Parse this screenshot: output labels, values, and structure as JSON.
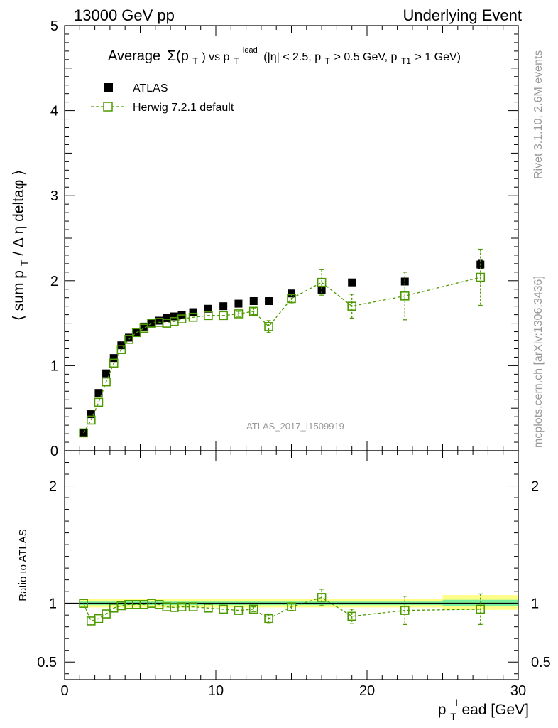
{
  "header": {
    "left": "13000 GeV pp",
    "right": "Underlying Event"
  },
  "side_labels": {
    "rivet": "Rivet 3.1.10,  2.6M events",
    "mcplots": "mcplots.cern.ch [arXiv:1306.3436]"
  },
  "analysis_label": "ATLAS_2017_I1509919",
  "chart_data": [
    {
      "type": "scatter",
      "title_parts": {
        "main": "Average",
        "sigma": "Σ(p",
        "sigma_sub": "T",
        "vs": ") vs p",
        "lead_sub": "T",
        "lead_sup": "lead",
        "cuts_a": "(|η| < 2.5, p",
        "cuts_sub1": "T",
        "cuts_b": " > 0.5 GeV, p",
        "cuts_sub2": "T1",
        "cuts_c": " > 1 GeV)"
      },
      "ylabel": {
        "a": "⟨ sum p",
        "sub": "T",
        "b": " / Δ η deltaφ ⟩"
      },
      "xlim": [
        0,
        30
      ],
      "ylim": [
        0,
        5
      ],
      "yticks": [
        0,
        1,
        2,
        3,
        4,
        5
      ],
      "legend": {
        "placement": "top-left"
      },
      "series": [
        {
          "name": "ATLAS",
          "color": "#000000",
          "marker": "filled-square",
          "x": [
            1.25,
            1.75,
            2.25,
            2.75,
            3.25,
            3.75,
            4.25,
            4.75,
            5.25,
            5.75,
            6.25,
            6.75,
            7.25,
            7.75,
            8.5,
            9.5,
            10.5,
            11.5,
            12.5,
            13.5,
            15.0,
            17.0,
            19.0,
            22.5,
            27.5
          ],
          "y": [
            0.21,
            0.43,
            0.68,
            0.91,
            1.09,
            1.24,
            1.33,
            1.4,
            1.46,
            1.5,
            1.53,
            1.56,
            1.58,
            1.6,
            1.63,
            1.67,
            1.7,
            1.73,
            1.76,
            1.76,
            1.85,
            1.89,
            1.98,
            1.99,
            2.19
          ],
          "err": [
            0.01,
            0.01,
            0.01,
            0.01,
            0.01,
            0.01,
            0.01,
            0.01,
            0.01,
            0.01,
            0.01,
            0.01,
            0.01,
            0.01,
            0.01,
            0.01,
            0.01,
            0.01,
            0.01,
            0.02,
            0.02,
            0.03,
            0.03,
            0.04,
            0.05
          ]
        },
        {
          "name": "Herwig 7.2.1 default",
          "color": "#4c9a00",
          "marker": "open-square",
          "x": [
            1.25,
            1.75,
            2.25,
            2.75,
            3.25,
            3.75,
            4.25,
            4.75,
            5.25,
            5.75,
            6.25,
            6.75,
            7.25,
            7.75,
            8.5,
            9.5,
            10.5,
            11.5,
            12.5,
            13.5,
            15.0,
            17.0,
            19.0,
            22.5,
            27.5
          ],
          "y": [
            0.21,
            0.36,
            0.57,
            0.81,
            1.03,
            1.19,
            1.31,
            1.39,
            1.44,
            1.5,
            1.51,
            1.5,
            1.52,
            1.55,
            1.57,
            1.59,
            1.59,
            1.61,
            1.64,
            1.46,
            1.79,
            1.98,
            1.7,
            1.82,
            2.04
          ],
          "err": [
            0.01,
            0.01,
            0.01,
            0.01,
            0.01,
            0.01,
            0.01,
            0.01,
            0.01,
            0.01,
            0.01,
            0.01,
            0.01,
            0.01,
            0.02,
            0.02,
            0.02,
            0.03,
            0.04,
            0.07,
            0.05,
            0.15,
            0.14,
            0.28,
            0.33
          ]
        }
      ]
    },
    {
      "type": "scatter",
      "ylabel": "Ratio to ATLAS",
      "xlabel": {
        "a": "p",
        "sub": "T",
        "sup": "l",
        "b": "ead [GeV]"
      },
      "xlim": [
        0,
        30
      ],
      "ylim": [
        0.35,
        2.3
      ],
      "xticks": [
        0,
        10,
        20,
        30
      ],
      "yticks": [
        0.5,
        1,
        2
      ],
      "reference_line": 1,
      "bands": [
        {
          "x": [
            1.0,
            25.0
          ],
          "yellow": [
            0.965,
            1.035
          ],
          "green": [
            0.985,
            1.015
          ]
        },
        {
          "x": [
            25.0,
            30.0
          ],
          "yellow": [
            0.945,
            1.07
          ],
          "green": [
            0.975,
            1.03
          ]
        }
      ],
      "series": [
        {
          "name": "Herwig 7.2.1 default",
          "color": "#4c9a00",
          "marker": "open-square",
          "x": [
            1.25,
            1.75,
            2.25,
            2.75,
            3.25,
            3.75,
            4.25,
            4.75,
            5.25,
            5.75,
            6.25,
            6.75,
            7.25,
            7.75,
            8.5,
            9.5,
            10.5,
            11.5,
            12.5,
            13.5,
            15.0,
            17.0,
            19.0,
            22.5,
            27.5
          ],
          "y": [
            1.0,
            0.85,
            0.87,
            0.91,
            0.96,
            0.98,
            0.99,
            0.99,
            0.99,
            1.0,
            0.99,
            0.97,
            0.965,
            0.97,
            0.97,
            0.96,
            0.95,
            0.94,
            0.95,
            0.87,
            0.97,
            1.05,
            0.89,
            0.94,
            0.95
          ],
          "err": [
            0.01,
            0.01,
            0.01,
            0.01,
            0.01,
            0.01,
            0.01,
            0.01,
            0.01,
            0.01,
            0.01,
            0.01,
            0.01,
            0.01,
            0.01,
            0.01,
            0.01,
            0.01,
            0.02,
            0.04,
            0.03,
            0.07,
            0.06,
            0.12,
            0.13
          ]
        }
      ]
    }
  ]
}
